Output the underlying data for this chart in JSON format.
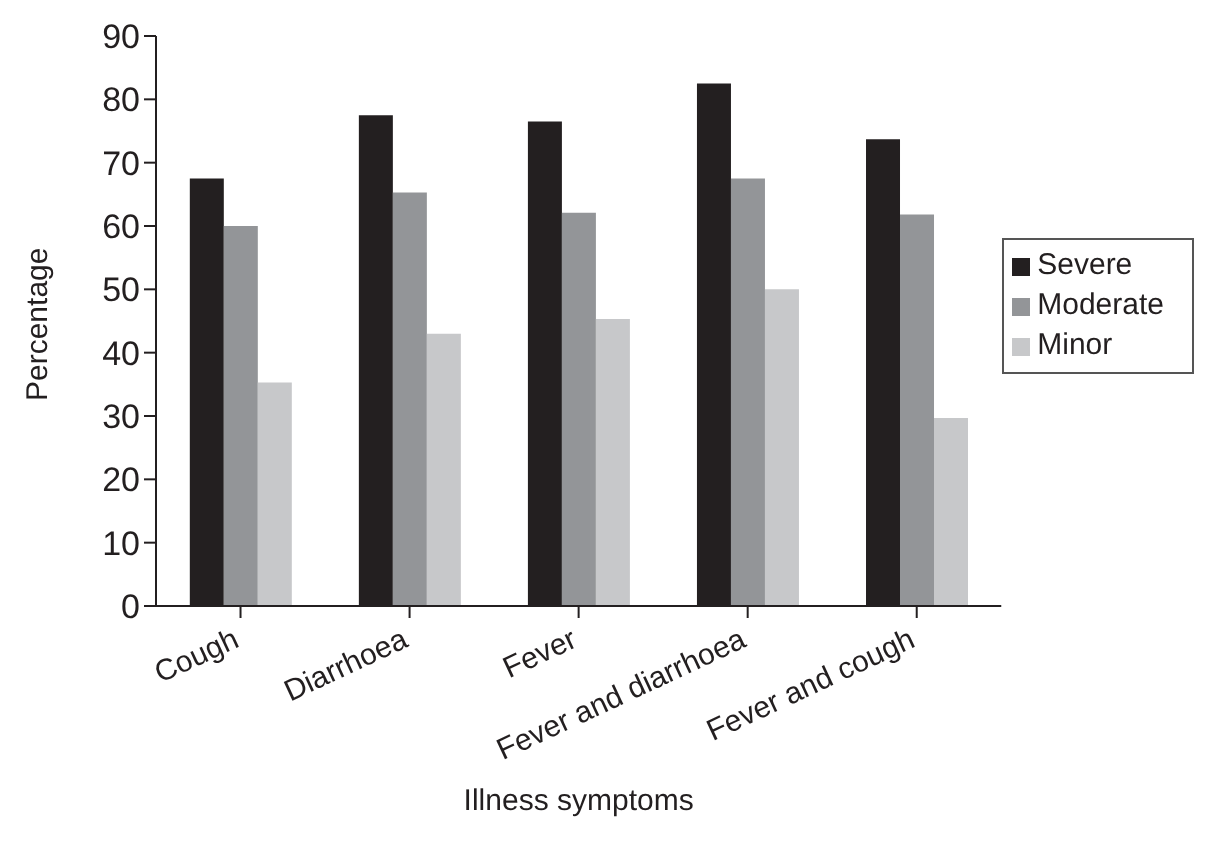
{
  "chart_data": {
    "type": "bar",
    "xlabel": "Illness symptoms",
    "ylabel": "Percentage",
    "categories": [
      "Cough",
      "Diarrhoea",
      "Fever",
      "Fever and diarrhoea",
      "Fever and cough"
    ],
    "series": [
      {
        "name": "Severe",
        "color": "#231f20",
        "values": [
          67.5,
          77.5,
          76.5,
          82.5,
          73.7
        ]
      },
      {
        "name": "Moderate",
        "color": "#939598",
        "values": [
          60,
          65.3,
          62.1,
          67.5,
          61.8
        ]
      },
      {
        "name": "Minor",
        "color": "#c7c8ca",
        "values": [
          35.3,
          43,
          45.3,
          50,
          29.7
        ]
      }
    ],
    "ylim": [
      0,
      90
    ],
    "yticks": [
      0,
      10,
      20,
      30,
      40,
      50,
      60,
      70,
      80,
      90
    ],
    "grid": false,
    "legend": "right"
  }
}
